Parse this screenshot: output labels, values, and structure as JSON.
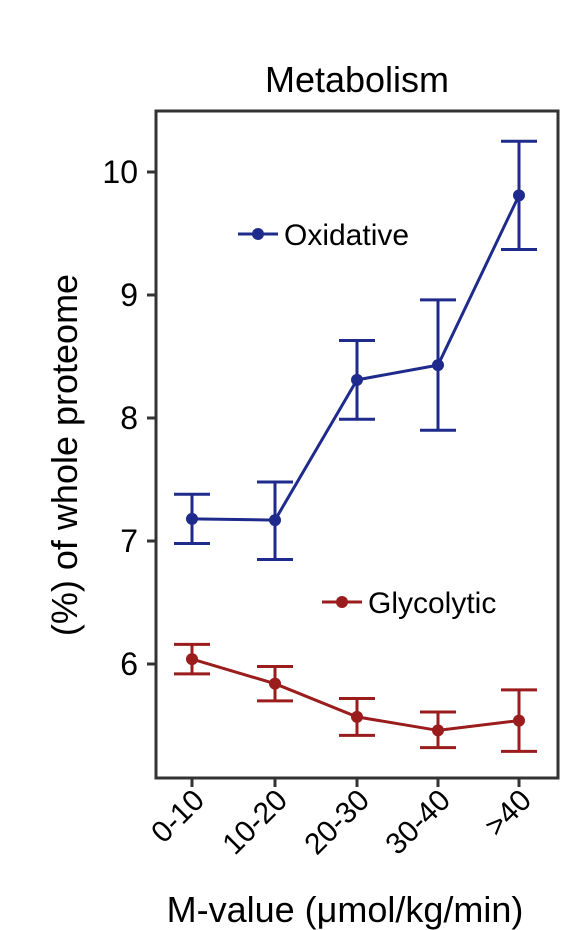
{
  "chart_data": {
    "type": "line",
    "title": "Metabolism",
    "xlabel": "M-value (μmol/kg/min)",
    "ylabel": "(%) of whole proteome",
    "categories": [
      "0-10",
      "10-20",
      "20-30",
      "30-40",
      ">40"
    ],
    "yticks": [
      "6",
      "7",
      "8",
      "9",
      "10"
    ],
    "ylim": [
      5.2,
      10.5
    ],
    "grid": false,
    "legend_position": "inside",
    "series": [
      {
        "name": "Oxidative",
        "color": "#1f2b8c",
        "values": [
          7.18,
          7.17,
          8.31,
          8.43,
          9.81
        ],
        "err_low": [
          6.98,
          6.85,
          7.99,
          7.9,
          9.37
        ],
        "err_high": [
          7.38,
          7.48,
          8.63,
          8.96,
          10.25
        ]
      },
      {
        "name": "Glycolytic",
        "color": "#9b1c1c",
        "values": [
          6.04,
          5.84,
          5.57,
          5.46,
          5.54
        ],
        "err_low": [
          5.92,
          5.7,
          5.42,
          5.32,
          5.29
        ],
        "err_high": [
          6.16,
          5.98,
          5.72,
          5.61,
          5.79
        ]
      }
    ]
  }
}
